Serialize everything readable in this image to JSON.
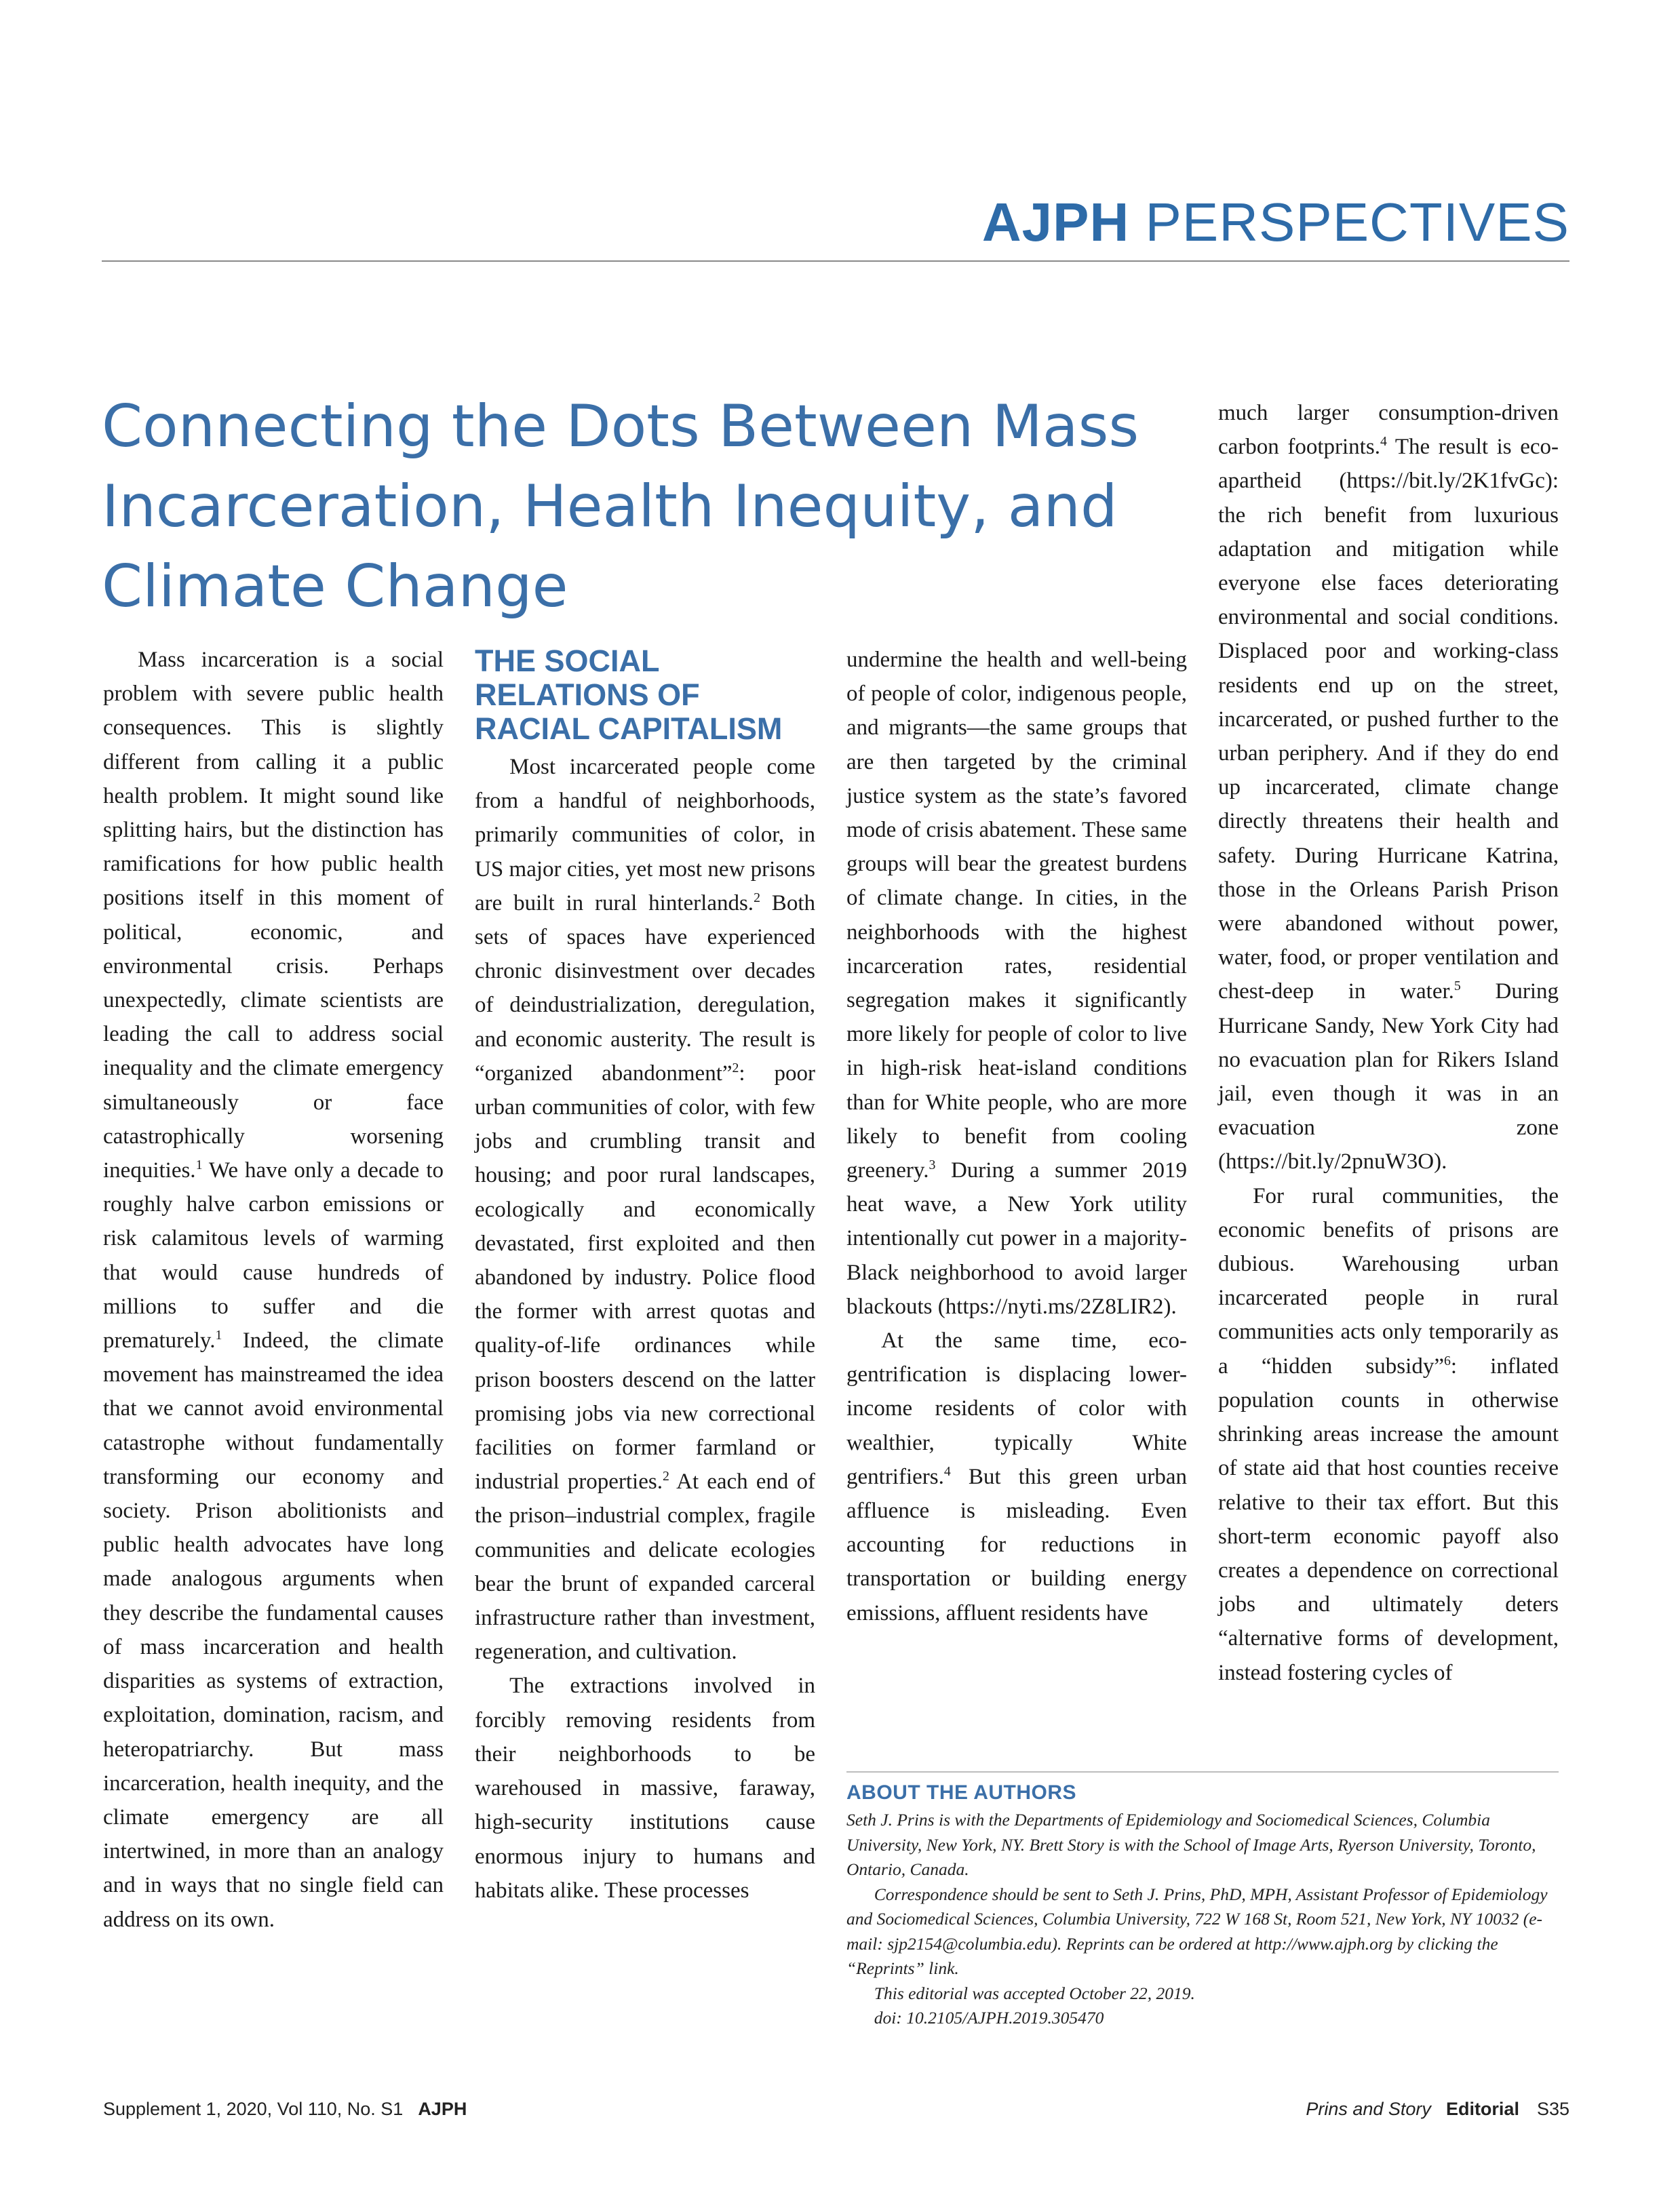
{
  "header": {
    "journal": "AJPH",
    "section": "PERSPECTIVES"
  },
  "title": "Connecting the Dots Between Mass Incarceration, Health Inequity, and Climate Change",
  "col1": {
    "p1": "Mass incarceration is a social problem with severe public health consequences. This is slightly different from calling it a public health problem. It might sound like splitting hairs, but the distinction has ramifications for how public health positions itself in this moment of political, economic, and environmental crisis. Perhaps unexpectedly, climate scientists are leading the call to address social inequality and the climate emergency simultaneously or face catastrophically worsening inequities.",
    "r1": "1",
    "p1b": " We have only a decade to roughly halve carbon emissions or risk calamitous levels of warming that would cause hundreds of millions to suffer and die prematurely.",
    "r2": "1",
    "p1c": " Indeed, the climate movement has mainstreamed the idea that we cannot avoid environmental catastrophe without fundamentally transforming our economy and society. Prison abolitionists and public health advocates have long made analogous arguments when they describe the fundamental causes of mass incarceration and health disparities as systems of extraction, exploitation, domination, racism, and heteropatriarchy. But mass incarceration, health inequity, and the climate emergency are all intertwined, in more than an analogy and in ways that no single field can address on its own."
  },
  "col2": {
    "heading": "THE SOCIAL RELATIONS OF RACIAL CAPITALISM",
    "p1a": "Most incarcerated people come from a handful of neighborhoods, primarily communities of color, in US major cities, yet most new prisons are built in rural hinterlands.",
    "r1": "2",
    "p1b": " Both sets of spaces have experienced chronic disinvestment over decades of deindustrialization, deregulation, and economic austerity. The result is “organized abandonment”",
    "r2": "2",
    "p1c": ": poor urban communities of color, with few jobs and crumbling transit and housing; and poor rural landscapes, ecologically and economically devastated, first exploited and then abandoned by industry. Police flood the former with arrest quotas and quality-of-life ordinances while prison boosters descend on the latter promising jobs via new correctional facilities on former farmland or industrial properties.",
    "r3": "2",
    "p1d": " At each end of the prison–industrial complex, fragile communities and delicate ecologies bear the brunt of expanded carceral infrastructure rather than investment, regeneration, and cultivation.",
    "p2": "The extractions involved in forcibly removing residents from their neighborhoods to be warehoused in massive, faraway, high-security institutions cause enormous injury to humans and habitats alike. These processes"
  },
  "col3": {
    "p1a": "undermine the health and well-being of people of color, indigenous people, and migrants—the same groups that are then targeted by the criminal justice system as the state’s favored mode of crisis abatement. These same groups will bear the greatest burdens of climate change. In cities, in the neighborhoods with the highest incarceration rates, residential segregation makes it significantly more likely for people of color to live in high-risk heat-island conditions than for White people, who are more likely to benefit from cooling greenery.",
    "r1": "3",
    "p1b": " During a summer 2019 heat wave, a New York utility intentionally cut power in a majority-Black neighborhood to avoid larger blackouts (https://nyti.ms/2Z8LIR2).",
    "p2a": "At the same time, eco-gentrification is displacing lower-income residents of color with wealthier, typically White gentrifiers.",
    "r2": "4",
    "p2b": " But this green urban affluence is misleading. Even accounting for reductions in transportation or building energy emissions, affluent residents have"
  },
  "col4": {
    "p1a": "much larger consumption-driven carbon footprints.",
    "r1": "4",
    "p1b": " The result is eco-apartheid (https://bit.ly/2K1fvGc): the rich benefit from luxurious adaptation and mitigation while everyone else faces deteriorating environmental and social conditions. Displaced poor and working-class residents end up on the street, incarcerated, or pushed further to the urban periphery. And if they do end up incarcerated, climate change directly threatens their health and safety. During Hurricane Katrina, those in the Orleans Parish Prison were abandoned without power, water, food, or proper ventilation and chest-deep in water.",
    "r2": "5",
    "p1c": " During Hurricane Sandy, New York City had no evacuation plan for Rikers Island jail, even though it was in an evacuation zone (https://bit.ly/2pnuW3O).",
    "p2a": "For rural communities, the economic benefits of prisons are dubious. Warehousing urban incarcerated people in rural communities acts only temporarily as a “hidden subsidy”",
    "r3": "6",
    "p2b": ": inflated population counts in otherwise shrinking areas increase the amount of state aid that host counties receive relative to their tax effort. But this short-term economic payoff also creates a dependence on correctional jobs and ultimately deters “alternative forms of development, instead fostering cycles of"
  },
  "authors": {
    "heading": "ABOUT THE AUTHORS",
    "affiliation": "Seth J. Prins is with the Departments of Epidemiology and Sociomedical Sciences, Columbia University, New York, NY. Brett Story is with the School of Image Arts, Ryerson University, Toronto, Ontario, Canada.",
    "correspondence": "Correspondence should be sent to Seth J. Prins, PhD, MPH, Assistant Professor of Epidemiology and Sociomedical Sciences, Columbia University, 722 W 168 St, Room 521, New York, NY 10032 (e-mail: sjp2154@columbia.edu). Reprints can be ordered at http://www.ajph.org by clicking the “Reprints” link.",
    "accepted": "This editorial was accepted October 22, 2019.",
    "doi": "doi: 10.2105/AJPH.2019.305470"
  },
  "footer": {
    "issue": "Supplement 1, 2020, Vol 110, No. S1",
    "journal": "AJPH",
    "authors": "Prins and Story",
    "type": "Editorial",
    "page": "S35"
  }
}
